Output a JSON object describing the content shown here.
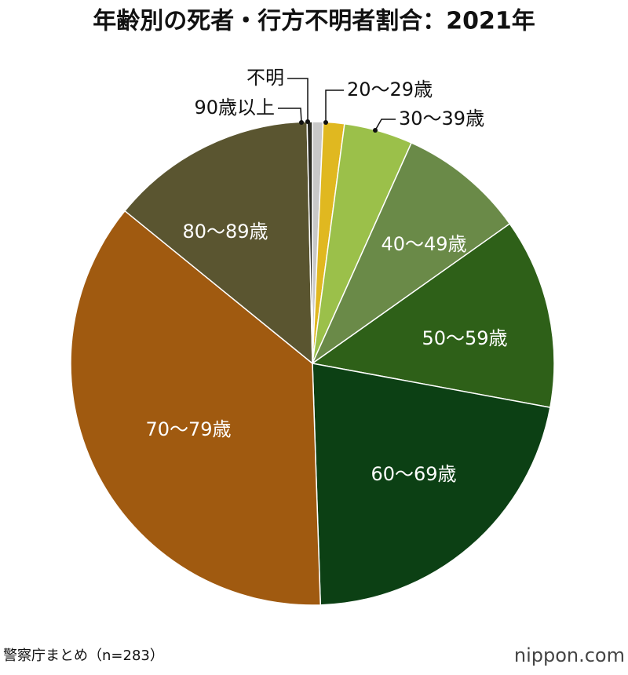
{
  "chart_data": {
    "type": "pie",
    "title": "年齢別の死者・行方不明者割合：2021年",
    "categories": [
      "不明",
      "20～29歳",
      "30～39歳",
      "40～49歳",
      "50～59歳",
      "60～69歳",
      "70～79歳",
      "80～89歳",
      "90歳以上"
    ],
    "values": [
      2,
      4,
      13,
      24,
      36,
      61,
      103,
      39,
      1
    ],
    "colors": [
      "#c8c8c8",
      "#e0b820",
      "#9bc04a",
      "#6a8a48",
      "#2e6018",
      "#0c4014",
      "#a05a10",
      "#5a5530",
      "#2a2a20"
    ],
    "source": "警察庁まとめ（n=283）",
    "logo": "nippon.com"
  }
}
